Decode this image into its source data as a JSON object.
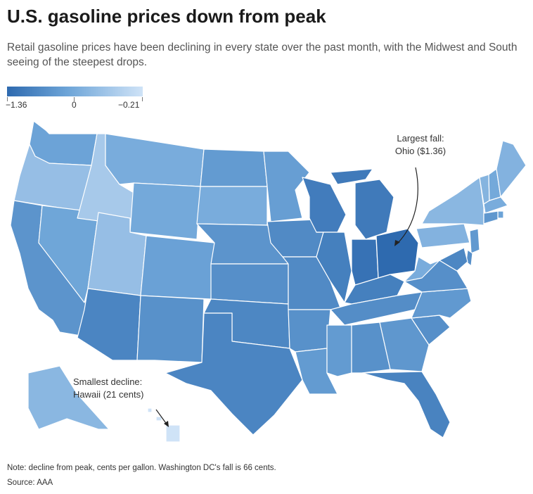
{
  "title": "U.S. gasoline prices down from peak",
  "subtitle": "Retail gasoline prices have been declining in every state over the past month, with the Midwest and South seeing of the steepest drops.",
  "legend": {
    "min_label": "−1.36",
    "mid_label": "0",
    "max_label": "−0.21",
    "colors": {
      "low": "#2e6aaf",
      "mid": "#6ea5d8",
      "high": "#cfe3f7"
    }
  },
  "annotations": {
    "largest_line1": "Largest fall:",
    "largest_line2": "Ohio ($1.36)",
    "smallest_line1": "Smallest decline:",
    "smallest_line2": "Hawaii (21 cents)"
  },
  "note": "Note: decline from peak, cents per gallon. Washington DC's fall is 66 cents.",
  "source": "Source: AAA",
  "map_data": {
    "unit": "dollars per gallon decline from peak",
    "states": [
      {
        "id": "WA",
        "value": -0.8
      },
      {
        "id": "OR",
        "value": -0.55
      },
      {
        "id": "CA",
        "value": -0.95
      },
      {
        "id": "NV",
        "value": -0.78
      },
      {
        "id": "ID",
        "value": -0.45
      },
      {
        "id": "MT",
        "value": -0.72
      },
      {
        "id": "WY",
        "value": -0.75
      },
      {
        "id": "UT",
        "value": -0.55
      },
      {
        "id": "AZ",
        "value": -1.1
      },
      {
        "id": "CO",
        "value": -0.82
      },
      {
        "id": "NM",
        "value": -0.98
      },
      {
        "id": "ND",
        "value": -0.88
      },
      {
        "id": "SD",
        "value": -0.72
      },
      {
        "id": "NE",
        "value": -0.95
      },
      {
        "id": "KS",
        "value": -1.0
      },
      {
        "id": "OK",
        "value": -1.08
      },
      {
        "id": "TX",
        "value": -1.1
      },
      {
        "id": "MN",
        "value": -0.85
      },
      {
        "id": "IA",
        "value": -1.05
      },
      {
        "id": "MO",
        "value": -1.05
      },
      {
        "id": "AR",
        "value": -0.98
      },
      {
        "id": "LA",
        "value": -0.88
      },
      {
        "id": "WI",
        "value": -1.18
      },
      {
        "id": "IL",
        "value": -1.15
      },
      {
        "id": "MI",
        "value": -1.2
      },
      {
        "id": "IN",
        "value": -1.28
      },
      {
        "id": "OH",
        "value": -1.36
      },
      {
        "id": "KY",
        "value": -1.15
      },
      {
        "id": "TN",
        "value": -1.02
      },
      {
        "id": "MS",
        "value": -0.88
      },
      {
        "id": "AL",
        "value": -0.98
      },
      {
        "id": "GA",
        "value": -0.92
      },
      {
        "id": "FL",
        "value": -1.12
      },
      {
        "id": "SC",
        "value": -1.0
      },
      {
        "id": "NC",
        "value": -0.9
      },
      {
        "id": "VA",
        "value": -1.0
      },
      {
        "id": "WV",
        "value": -0.72
      },
      {
        "id": "PA",
        "value": -0.66
      },
      {
        "id": "NY",
        "value": -0.62
      },
      {
        "id": "VT",
        "value": -0.65
      },
      {
        "id": "NH",
        "value": -0.75
      },
      {
        "id": "ME",
        "value": -0.66
      },
      {
        "id": "MA",
        "value": -0.72
      },
      {
        "id": "RI",
        "value": -0.8
      },
      {
        "id": "CT",
        "value": -0.92
      },
      {
        "id": "NJ",
        "value": -0.9
      },
      {
        "id": "DE",
        "value": -1.0
      },
      {
        "id": "MD",
        "value": -1.08
      },
      {
        "id": "AK",
        "value": -0.62
      },
      {
        "id": "HI",
        "value": -0.21
      }
    ]
  }
}
